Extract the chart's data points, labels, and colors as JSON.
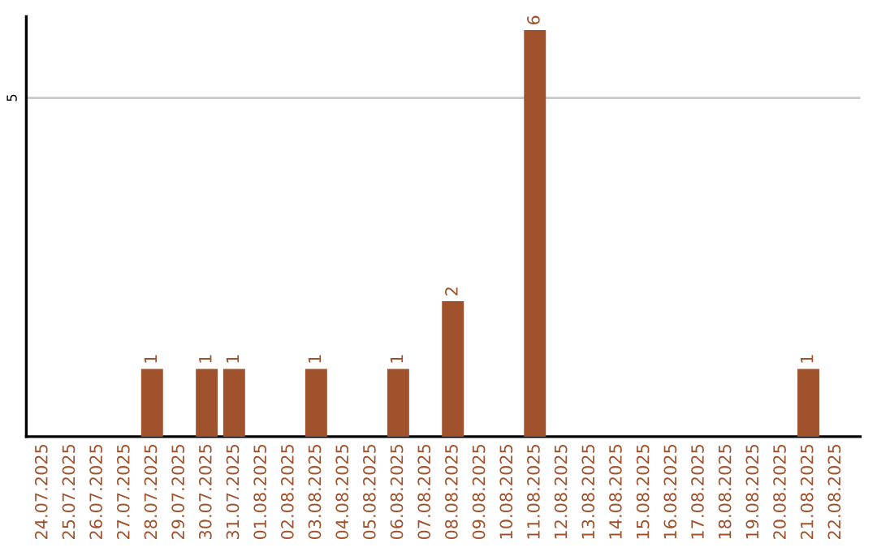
{
  "chart_data": {
    "type": "bar",
    "categories": [
      "24.07.2025",
      "25.07.2025",
      "26.07.2025",
      "27.07.2025",
      "28.07.2025",
      "29.07.2025",
      "30.07.2025",
      "31.07.2025",
      "01.08.2025",
      "02.08.2025",
      "03.08.2025",
      "04.08.2025",
      "05.08.2025",
      "06.08.2025",
      "07.08.2025",
      "08.08.2025",
      "09.08.2025",
      "10.08.2025",
      "11.08.2025",
      "12.08.2025",
      "13.08.2025",
      "14.08.2025",
      "15.08.2025",
      "16.08.2025",
      "17.08.2025",
      "18.08.2025",
      "19.08.2025",
      "20.08.2025",
      "21.08.2025",
      "22.08.2025"
    ],
    "values": [
      0,
      0,
      0,
      0,
      1,
      0,
      1,
      1,
      0,
      0,
      1,
      0,
      0,
      1,
      0,
      2,
      0,
      0,
      6,
      0,
      0,
      0,
      0,
      0,
      0,
      0,
      0,
      0,
      1,
      0
    ],
    "value_labels": [
      null,
      null,
      null,
      null,
      "1",
      null,
      "1",
      "1",
      null,
      null,
      "1",
      null,
      null,
      "1",
      null,
      "2",
      null,
      null,
      "6",
      null,
      null,
      null,
      null,
      null,
      null,
      null,
      null,
      null,
      "1",
      null
    ],
    "color": "#a0522d",
    "ylim": [
      0,
      6.2
    ],
    "yticks": [
      5
    ],
    "grid": "y",
    "legend": false
  }
}
